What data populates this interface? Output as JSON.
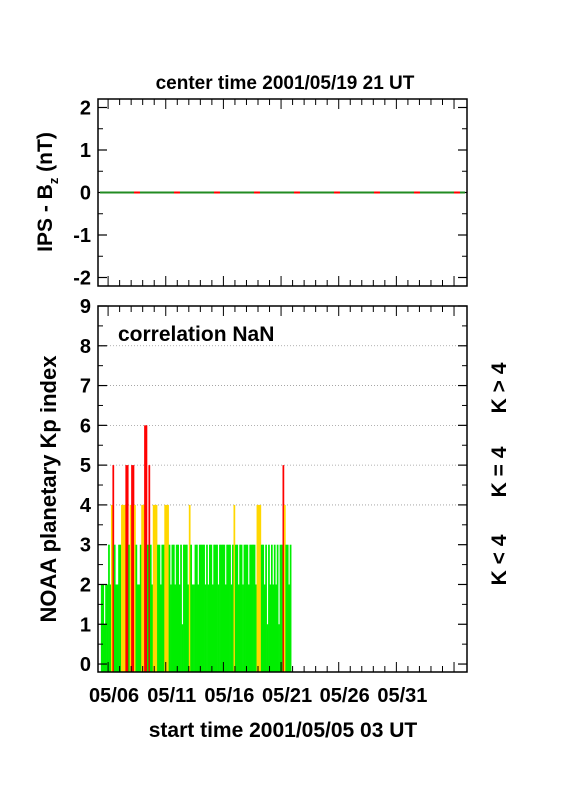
{
  "top_title": "center time 2001/05/19 21 UT",
  "bottom_title": "start time 2001/05/05 03 UT",
  "annotation": "correlation NaN",
  "top_ylabel": "IPS - B",
  "top_ylabel_sub": "z",
  "top_ylabel_unit": " (nT)",
  "bottom_ylabel": "NOAA planetary Kp index",
  "legend": {
    "k_gt4": "K > 4",
    "k_eq4": "K = 4",
    "k_lt4": "K < 4"
  },
  "colors": {
    "k_gt4": "#ff0000",
    "k_eq4": "#ffd700",
    "k_lt4": "#00ee00",
    "bz_dash_a": "#228b22",
    "bz_dash_b": "#ff0000"
  },
  "chart_data": [
    {
      "type": "line",
      "title": "center time 2001/05/19 21 UT",
      "ylabel": "IPS - Bz (nT)",
      "ylim": [
        -2.2,
        2.2
      ],
      "yticks": [
        2,
        1,
        0,
        -1,
        -2
      ],
      "x_range_days": [
        0,
        32
      ],
      "series": [
        {
          "values_constant": 0
        }
      ]
    },
    {
      "type": "bar",
      "ylabel": "NOAA planetary Kp index",
      "xlabel": "start time 2001/05/05 03 UT",
      "ylim": [
        -0.2,
        9
      ],
      "yticks": [
        0,
        1,
        2,
        3,
        4,
        5,
        6,
        7,
        8,
        9
      ],
      "grid_y": [
        4,
        5,
        6,
        7,
        8
      ],
      "xticks": [
        "05/06",
        "05/11",
        "05/16",
        "05/21",
        "05/26",
        "05/31"
      ],
      "x_range_days": [
        0,
        32
      ],
      "xtick_days": [
        0.875,
        5.875,
        10.875,
        15.875,
        20.875,
        25.875
      ],
      "kp_3hourly_estimated": [
        2,
        2,
        1,
        2,
        2,
        3,
        2,
        4,
        5,
        3,
        2,
        2,
        3,
        3,
        4,
        4,
        4,
        5,
        5,
        3,
        4,
        5,
        5,
        4,
        3,
        2,
        2,
        3,
        4,
        4,
        6,
        6,
        3,
        5,
        3,
        2,
        4,
        4,
        4,
        3,
        3,
        2,
        3,
        3,
        4,
        4,
        4,
        3,
        2,
        3,
        3,
        2,
        3,
        3,
        2,
        3,
        1,
        3,
        3,
        3,
        2,
        4,
        3,
        2,
        2,
        3,
        3,
        2,
        3,
        3,
        3,
        3,
        2,
        3,
        2,
        3,
        3,
        2,
        3,
        3,
        3,
        2,
        3,
        3,
        3,
        3,
        2,
        3,
        3,
        3,
        2,
        3,
        4,
        3,
        3,
        2,
        3,
        3,
        2,
        3,
        3,
        3,
        2,
        3,
        3,
        3,
        3,
        2,
        4,
        4,
        4,
        3,
        3,
        2,
        3,
        1,
        3,
        2,
        3,
        2,
        3,
        2,
        3,
        1,
        3,
        3,
        5,
        4,
        3,
        3,
        2,
        3
      ]
    }
  ]
}
